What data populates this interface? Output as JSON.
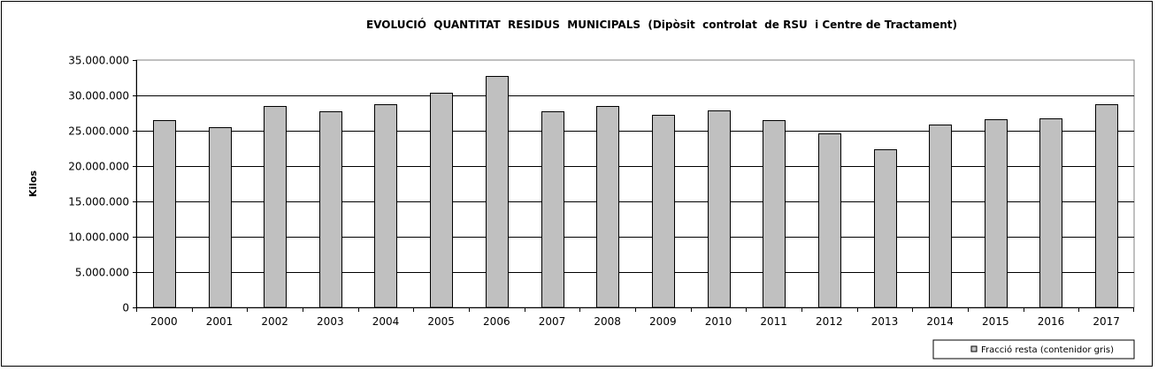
{
  "chart_data": {
    "type": "bar",
    "title": "EVOLUCIÓ  QUANTITAT  RESIDUS  MUNICIPALS  (Dipòsit  controlat  de RSU  i Centre de Tractament)",
    "xlabel": "",
    "ylabel": "Kilos",
    "ylim": [
      0,
      35000000
    ],
    "yticks": [
      0,
      5000000,
      10000000,
      15000000,
      20000000,
      25000000,
      30000000,
      35000000
    ],
    "ytick_labels": [
      "0",
      "5.000.000",
      "10.000.000",
      "15.000.000",
      "20.000.000",
      "25.000.000",
      "30.000.000",
      "35.000.000"
    ],
    "grid": true,
    "legend_position": "bottom-right",
    "categories": [
      "2000",
      "2001",
      "2002",
      "2003",
      "2004",
      "2005",
      "2006",
      "2007",
      "2008",
      "2009",
      "2010",
      "2011",
      "2012",
      "2013",
      "2014",
      "2015",
      "2016",
      "2017"
    ],
    "series": [
      {
        "name": "Fracció resta (contenidor gris)",
        "color": "#c0c0c0",
        "values": [
          26500000,
          25500000,
          28500000,
          27750000,
          28750000,
          30400000,
          32750000,
          27750000,
          28500000,
          27250000,
          27900000,
          26500000,
          24650000,
          22400000,
          25850000,
          26600000,
          26750000,
          28750000
        ]
      }
    ]
  }
}
